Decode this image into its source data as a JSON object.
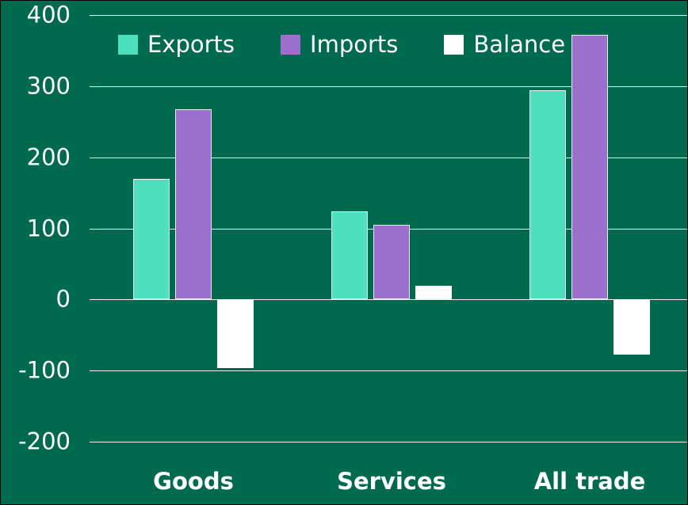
{
  "chart_data": {
    "type": "bar",
    "categories": [
      "Goods",
      "Services",
      "All trade"
    ],
    "series": [
      {
        "name": "Exports",
        "color": "#4CE0BD",
        "values": [
          170,
          124,
          294
        ]
      },
      {
        "name": "Imports",
        "color": "#9B6FCE",
        "values": [
          267,
          105,
          372
        ]
      },
      {
        "name": "Balance",
        "color": "#FFFFFF",
        "values": [
          -97,
          19,
          -78
        ]
      }
    ],
    "title": "",
    "xlabel": "",
    "ylabel": "",
    "ylim": [
      -200,
      400
    ],
    "ytick_step": 100,
    "yticks": [
      400,
      300,
      200,
      100,
      0,
      -100,
      -200
    ],
    "grid": true,
    "legend_position": "top-inside",
    "colors": {
      "background": "#006A4F",
      "text": "#FFFFFF",
      "gridline": "#FFFFFF"
    }
  }
}
